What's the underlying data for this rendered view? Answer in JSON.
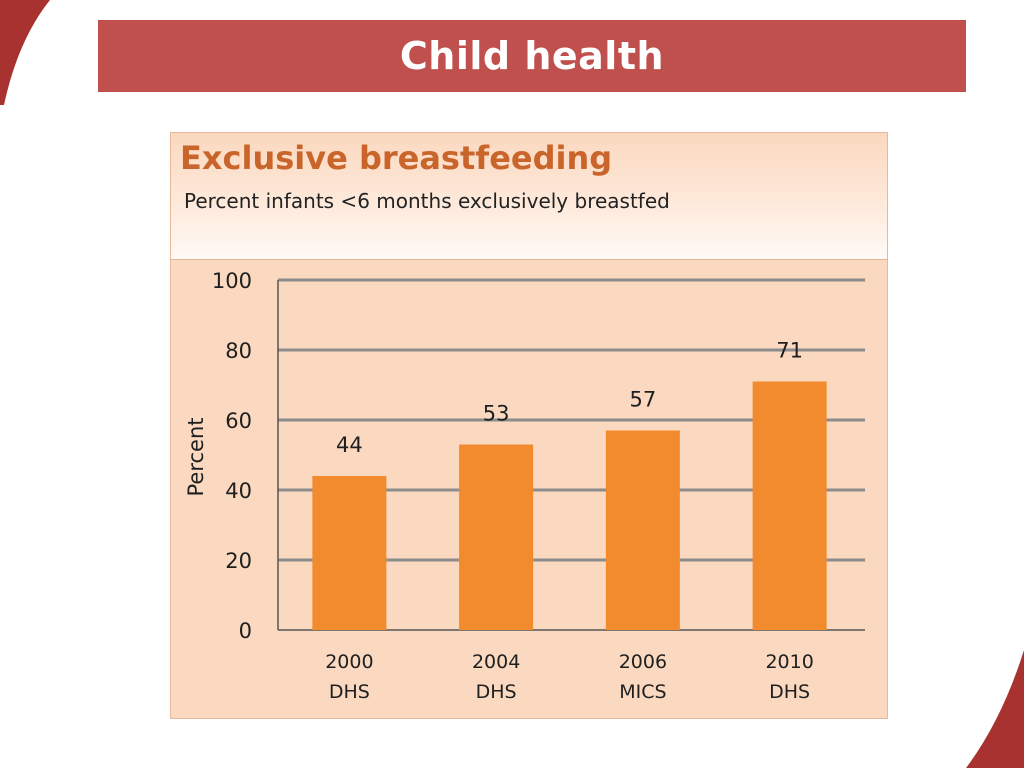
{
  "slide": {
    "title": "Child health"
  },
  "chart_data": {
    "type": "bar",
    "title": "Exclusive breastfeeding",
    "subtitle": "Percent infants <6 months exclusively breastfed",
    "ylabel": "Percent",
    "xlabel": "",
    "categories": [
      [
        "2000",
        "DHS"
      ],
      [
        "2004",
        "DHS"
      ],
      [
        "2006",
        "MICS"
      ],
      [
        "2010",
        "DHS"
      ]
    ],
    "values": [
      44,
      53,
      57,
      71
    ],
    "ylim": [
      0,
      100
    ],
    "yticks": [
      0,
      20,
      40,
      60,
      80,
      100
    ],
    "grid": true,
    "data_labels": true,
    "colors": {
      "bar": "#f28a2e",
      "gridline": "#8c8c8c",
      "panel": "#fad9c0",
      "banner": "#c0504d",
      "title": "#c9652a",
      "corner": "#a8322f"
    }
  }
}
